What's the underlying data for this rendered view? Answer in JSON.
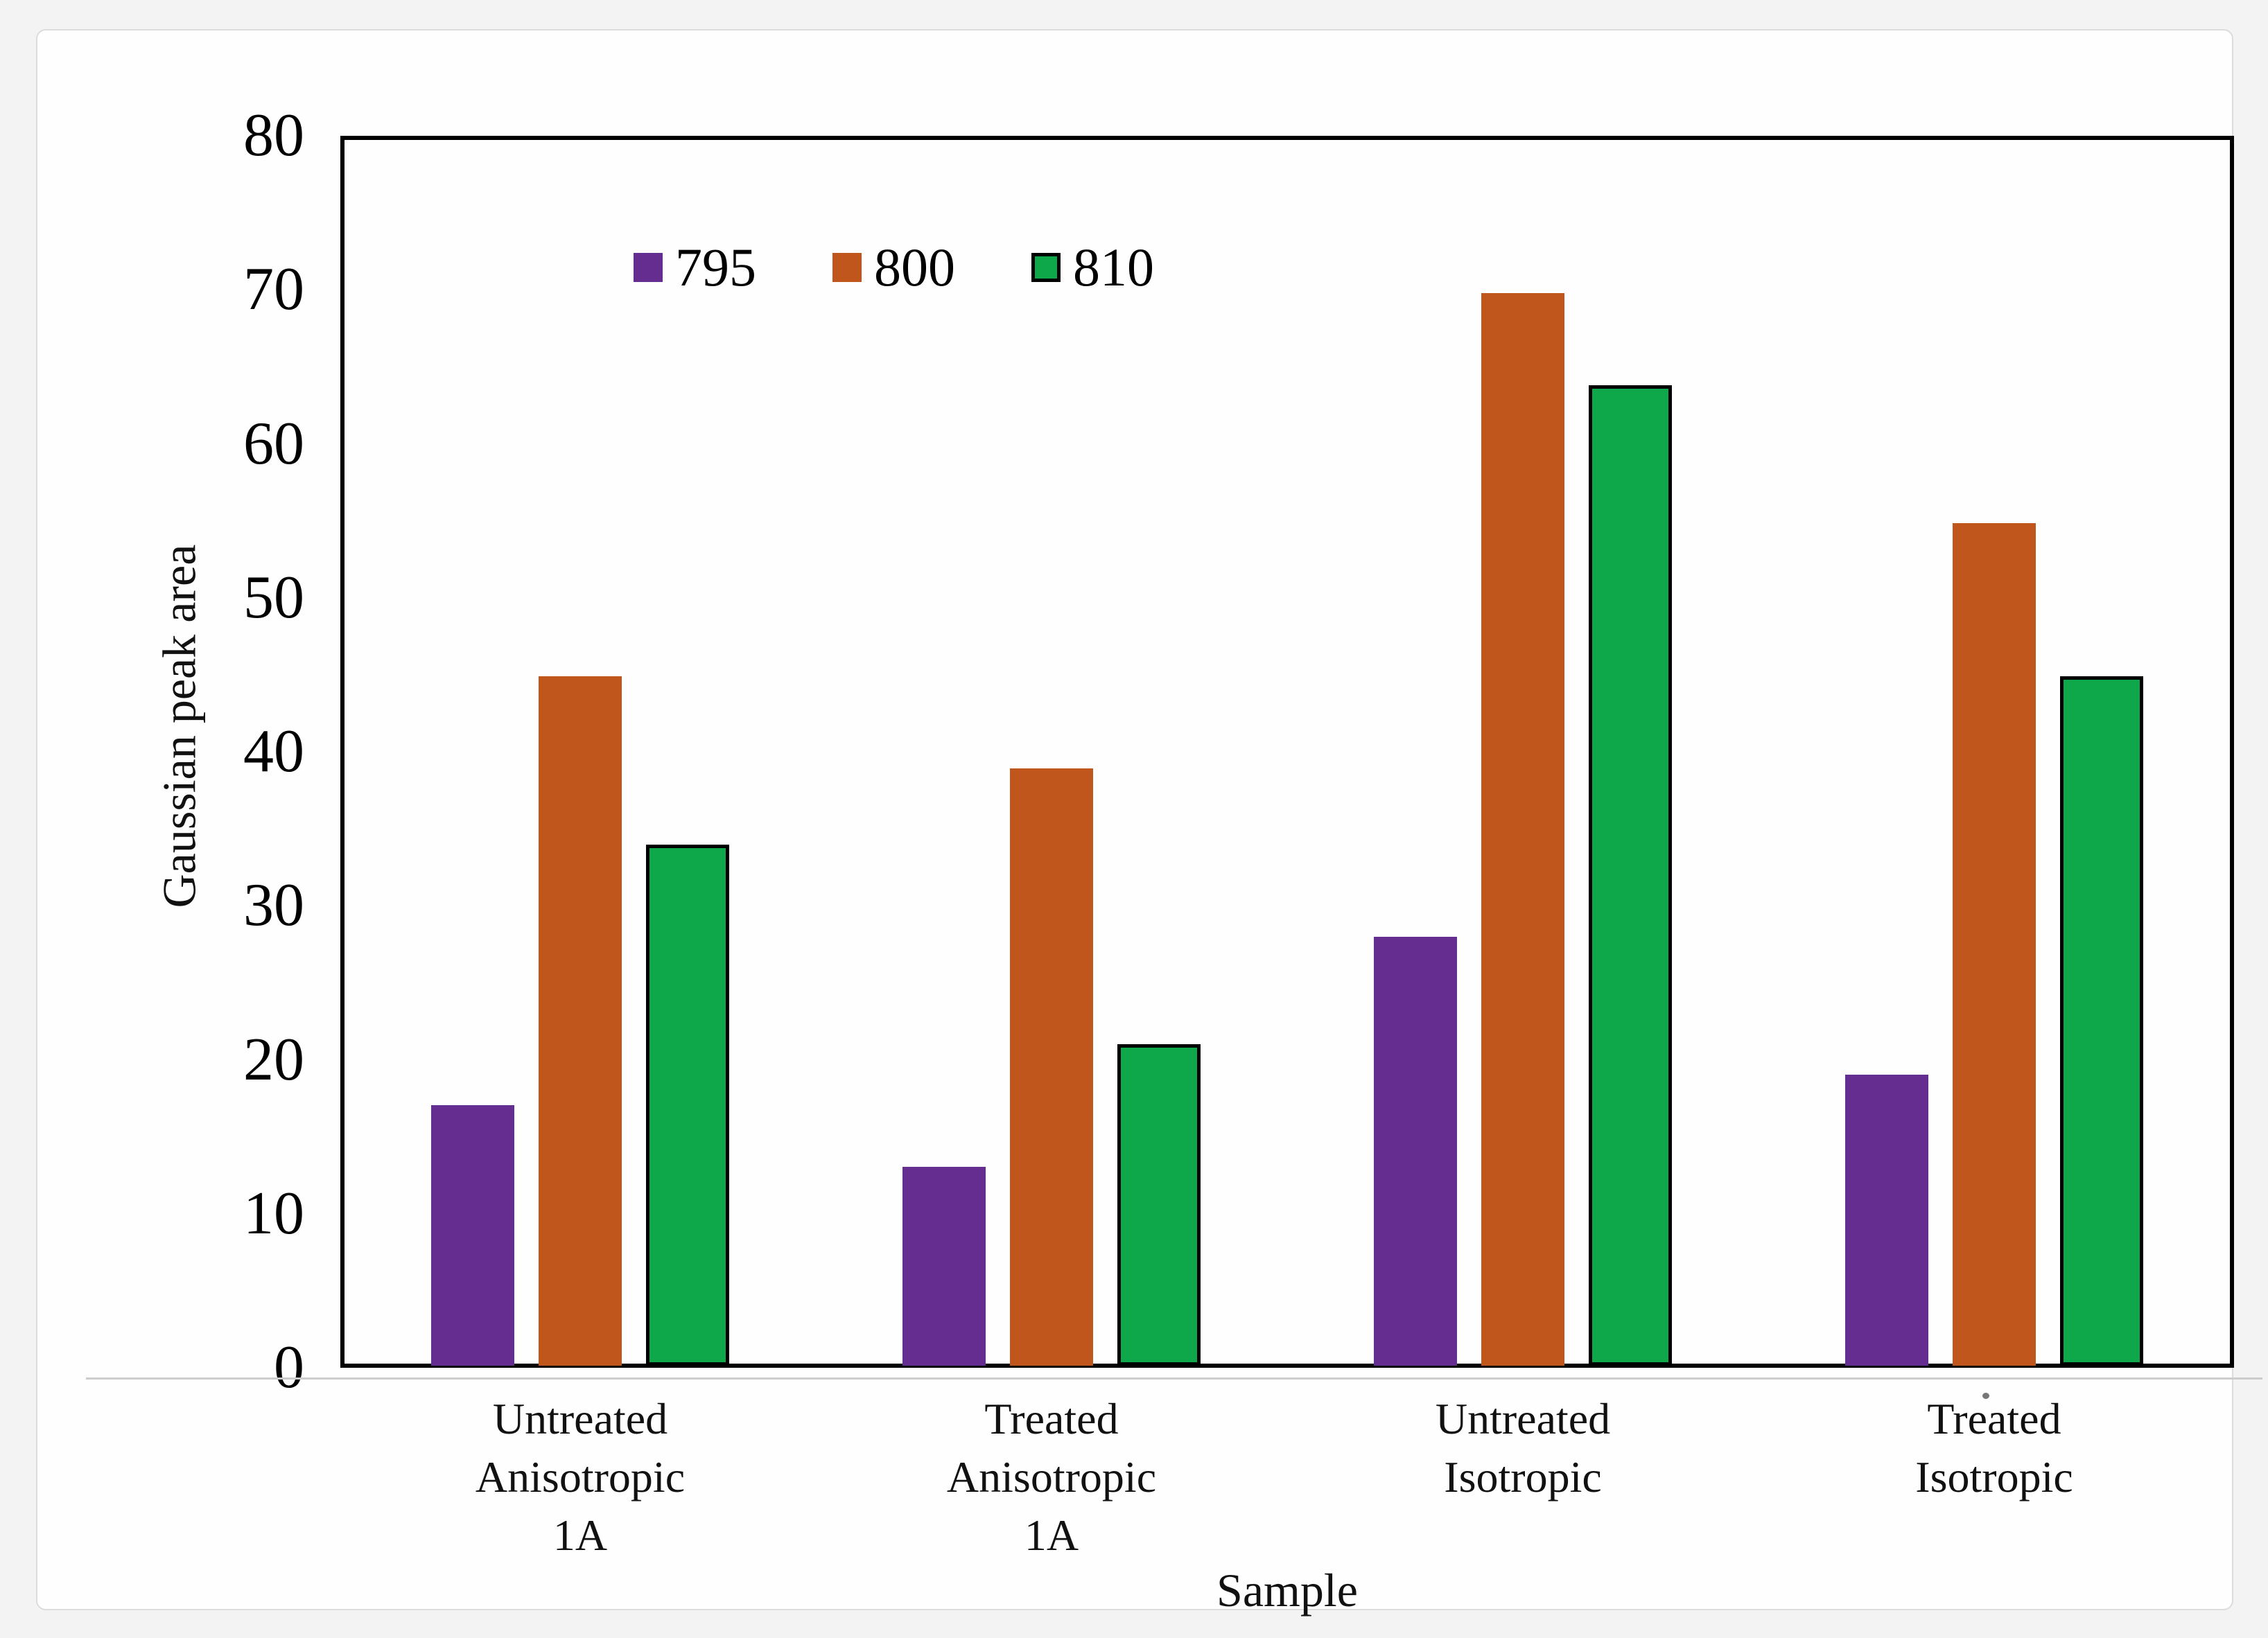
{
  "chart_data": {
    "type": "bar",
    "title": "",
    "xlabel": "Sample",
    "ylabel": "Gaussian peak area",
    "categories": [
      "Untreated\nAnisotropic\n1A",
      "Treated\nAnisotropic\n1A",
      "Untreated\nIsotropic",
      "Treated\nIsotropic"
    ],
    "series": [
      {
        "name": "795",
        "color": "#662d91",
        "outlined": false,
        "values": [
          17,
          13,
          28,
          19
        ]
      },
      {
        "name": "800",
        "color": "#c1561d",
        "outlined": false,
        "values": [
          45,
          39,
          70,
          55
        ]
      },
      {
        "name": "810",
        "color": "#0ea84b",
        "outlined": true,
        "outline_color": "#000000",
        "values": [
          34,
          21,
          64,
          45
        ]
      }
    ],
    "ylim": [
      0,
      80
    ],
    "ytick_step": 10,
    "yticks": [
      0,
      10,
      20,
      30,
      40,
      50,
      60,
      70,
      80
    ],
    "grid": false,
    "legend_position": "top-inside",
    "axis_color": "#000000",
    "plot_background": "#ffffff"
  }
}
